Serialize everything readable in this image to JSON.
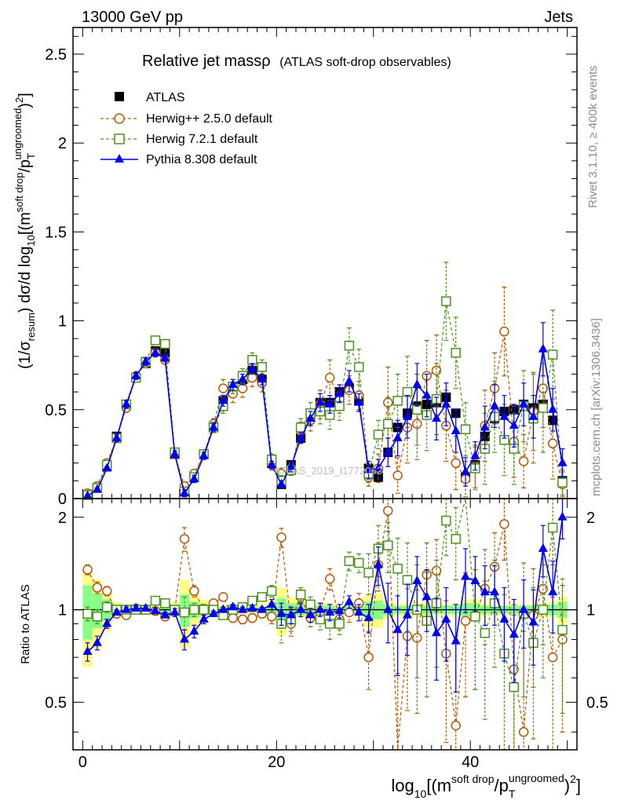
{
  "header": {
    "left": "13000 GeV pp",
    "right": "Jets"
  },
  "side_text": {
    "rivet": "Rivet 3.1.10, ≥ 400k events",
    "mcplots": "mcplots.cern.ch [arXiv:1306.3436]"
  },
  "watermark": "ATLAS_2019_I1772062",
  "chart_data": {
    "type": "scatter",
    "title": "Relative jet massρ",
    "subtitle": "(ATLAS soft-drop observables)",
    "ylabel": "(1/σresum) dσ/d log10[(m soft drop / pT ungroomed)2]",
    "ylabel_parts": {
      "a": "(1/σ",
      "a_sub": "resum",
      "b": ") dσ/d log",
      "b_sub": "10",
      "c": "[(m",
      "c_sup": "soft drop",
      "d": "/p",
      "d_sub": "T",
      "d_sup": "ungroomed",
      "e": ")",
      "e_sup": "2",
      "f": "]"
    },
    "xlabel_parts": {
      "a": "log",
      "a_sub": "10",
      "b": "[(m",
      "b_sup": "soft drop",
      "c": "/p",
      "c_sub": "T",
      "c_sup": "ungroomed",
      "d": ")",
      "d_sup": "2",
      "e": "]"
    },
    "ratio_ylabel": "Ratio to ATLAS",
    "xlim": [
      -1,
      51
    ],
    "ylim": [
      0,
      2.65
    ],
    "ratio_ylim": [
      0.35,
      2.3
    ],
    "x_ticks": [
      "0",
      "20",
      "40"
    ],
    "y_ticks": [
      "0",
      "0.5",
      "1",
      "1.5",
      "2",
      "2.5"
    ],
    "ratio_ticks": [
      "0.5",
      "1",
      "2"
    ],
    "legend": [
      {
        "name": "ATLAS"
      },
      {
        "name": "Herwig++ 2.5.0 default"
      },
      {
        "name": "Herwig 7.2.1 default"
      },
      {
        "name": "Pythia 8.308 default"
      }
    ],
    "colors": {
      "atlas": "#000000",
      "herwigpp": "#b35806",
      "herwig7": "#4d9221",
      "pythia": "#0000ee",
      "band_yellow": "#ffff88",
      "band_green": "#88ff88"
    },
    "x": [
      0.5,
      1.5,
      2.5,
      3.5,
      4.5,
      5.5,
      6.5,
      7.5,
      8.5,
      9.5,
      10.5,
      11.5,
      12.5,
      13.5,
      14.5,
      15.5,
      16.5,
      17.5,
      18.5,
      19.5,
      20.5,
      21.5,
      22.5,
      23.5,
      24.5,
      25.5,
      26.5,
      27.5,
      28.5,
      29.5,
      30.5,
      31.5,
      32.5,
      33.5,
      34.5,
      35.5,
      36.5,
      37.5,
      38.5,
      39.5,
      40.5,
      41.5,
      42.5,
      43.5,
      44.5,
      45.5,
      46.5,
      47.5,
      48.5,
      49.5
    ],
    "series": [
      {
        "name": "ATLAS",
        "values": [
          0.02,
          0.06,
          0.18,
          0.35,
          0.53,
          0.68,
          0.76,
          0.83,
          0.82,
          0.25,
          0.04,
          0.12,
          0.25,
          0.4,
          0.55,
          0.63,
          0.67,
          0.72,
          0.67,
          0.2,
          0.08,
          0.19,
          0.34,
          0.47,
          0.54,
          0.54,
          0.6,
          0.62,
          0.55,
          0.17,
          0.12,
          0.26,
          0.4,
          0.48,
          0.52,
          0.53,
          0.54,
          0.57,
          0.48,
          0.12,
          0.19,
          0.35,
          0.45,
          0.49,
          0.5,
          0.53,
          0.51,
          0.53,
          0.44,
          0.1
        ],
        "ratio": [
          1,
          1,
          1,
          1,
          1,
          1,
          1,
          1,
          1,
          1,
          1,
          1,
          1,
          1,
          1,
          1,
          1,
          1,
          1,
          1,
          1,
          1,
          1,
          1,
          1,
          1,
          1,
          1,
          1,
          1,
          1,
          1,
          1,
          1,
          1,
          1,
          1,
          1,
          1,
          1,
          1,
          1,
          1,
          1,
          1,
          1,
          1,
          1,
          1,
          1
        ],
        "band_yellow": [
          0.35,
          0.25,
          0.15,
          0.06,
          0.04,
          0.03,
          0.03,
          0.03,
          0.04,
          0.06,
          0.25,
          0.12,
          0.08,
          0.05,
          0.04,
          0.03,
          0.03,
          0.03,
          0.04,
          0.08,
          0.18,
          0.1,
          0.06,
          0.05,
          0.04,
          0.05,
          0.04,
          0.04,
          0.05,
          0.12,
          0.13,
          0.07,
          0.05,
          0.05,
          0.05,
          0.05,
          0.04,
          0.04,
          0.05,
          0.08,
          0.08,
          0.05,
          0.04,
          0.04,
          0.04,
          0.04,
          0.04,
          0.05,
          0.06,
          0.1
        ],
        "band_green": [
          0.2,
          0.13,
          0.08,
          0.04,
          0.02,
          0.02,
          0.02,
          0.02,
          0.03,
          0.04,
          0.12,
          0.06,
          0.04,
          0.03,
          0.02,
          0.02,
          0.02,
          0.02,
          0.02,
          0.04,
          0.09,
          0.05,
          0.04,
          0.03,
          0.03,
          0.03,
          0.02,
          0.03,
          0.03,
          0.06,
          0.07,
          0.04,
          0.03,
          0.03,
          0.03,
          0.03,
          0.03,
          0.03,
          0.03,
          0.05,
          0.05,
          0.03,
          0.03,
          0.03,
          0.03,
          0.03,
          0.03,
          0.03,
          0.04,
          0.06
        ]
      },
      {
        "name": "Herwig++ 2.5.0 default",
        "values": [
          0.03,
          0.07,
          0.2,
          0.34,
          0.51,
          0.69,
          0.76,
          0.82,
          0.78,
          0.25,
          0.07,
          0.14,
          0.25,
          0.42,
          0.62,
          0.59,
          0.62,
          0.68,
          0.65,
          0.19,
          0.14,
          0.17,
          0.38,
          0.44,
          0.53,
          0.68,
          0.56,
          0.61,
          0.58,
          0.12,
          0.17,
          0.54,
          0.13,
          0.4,
          0.42,
          0.69,
          0.72,
          0.41,
          0.2,
          0.11,
          0.18,
          0.41,
          0.62,
          0.94,
          0.32,
          0.21,
          0.49,
          0.62,
          0.31,
          0.08
        ],
        "ratio": [
          1.35,
          1.18,
          1.15,
          0.97,
          0.96,
          1.01,
          1.0,
          0.99,
          0.95,
          1.0,
          1.7,
          1.15,
          1.0,
          1.05,
          1.1,
          0.94,
          0.93,
          0.94,
          0.97,
          0.95,
          1.72,
          0.9,
          1.1,
          0.94,
          0.98,
          1.26,
          0.93,
          0.98,
          1.05,
          0.7,
          1.4,
          2.1,
          0.32,
          0.82,
          0.81,
          1.3,
          1.34,
          0.72,
          0.42,
          0.92,
          0.95,
          1.17,
          1.38,
          1.9,
          0.64,
          0.4,
          0.96,
          1.17,
          0.7,
          0.8
        ],
        "err": [
          0.01,
          0.01,
          0.02,
          0.02,
          0.02,
          0.02,
          0.02,
          0.02,
          0.02,
          0.02,
          0.02,
          0.02,
          0.02,
          0.03,
          0.05,
          0.05,
          0.05,
          0.05,
          0.05,
          0.03,
          0.03,
          0.03,
          0.05,
          0.06,
          0.08,
          0.1,
          0.08,
          0.08,
          0.08,
          0.05,
          0.08,
          0.2,
          0.1,
          0.2,
          0.2,
          0.2,
          0.2,
          0.2,
          0.15,
          0.1,
          0.12,
          0.2,
          0.2,
          0.25,
          0.2,
          0.15,
          0.22,
          0.22,
          0.2,
          0.07
        ],
        "ratio_err": [
          0.05,
          0.05,
          0.04,
          0.03,
          0.03,
          0.02,
          0.02,
          0.02,
          0.02,
          0.03,
          0.15,
          0.05,
          0.04,
          0.03,
          0.03,
          0.03,
          0.03,
          0.03,
          0.03,
          0.05,
          0.12,
          0.08,
          0.06,
          0.06,
          0.07,
          0.1,
          0.07,
          0.07,
          0.08,
          0.15,
          0.25,
          0.3,
          0.3,
          0.35,
          0.35,
          0.35,
          0.35,
          0.35,
          0.4,
          0.4,
          0.4,
          0.4,
          0.4,
          0.45,
          0.4,
          0.45,
          0.4,
          0.4,
          0.4,
          0.4
        ]
      },
      {
        "name": "Herwig 7.2.1 default",
        "values": [
          0.02,
          0.06,
          0.19,
          0.34,
          0.53,
          0.68,
          0.77,
          0.89,
          0.87,
          0.26,
          0.04,
          0.12,
          0.25,
          0.4,
          0.52,
          0.63,
          0.69,
          0.78,
          0.74,
          0.22,
          0.1,
          0.16,
          0.4,
          0.48,
          0.49,
          0.47,
          0.52,
          0.86,
          0.74,
          0.14,
          0.36,
          0.42,
          0.55,
          0.6,
          0.5,
          0.47,
          0.56,
          1.11,
          0.82,
          0.39,
          0.17,
          0.28,
          0.46,
          0.33,
          0.28,
          0.52,
          0.45,
          0.51,
          0.81,
          0.09
        ],
        "ratio": [
          0.97,
          0.95,
          1.02,
          1.0,
          1.0,
          1.0,
          1.0,
          1.07,
          1.05,
          1.0,
          0.98,
          1.0,
          1.0,
          1.0,
          0.96,
          1.0,
          1.02,
          1.07,
          1.1,
          1.15,
          0.9,
          0.93,
          1.12,
          1.04,
          0.93,
          0.9,
          0.9,
          1.44,
          1.42,
          1.32,
          1.58,
          1.62,
          1.36,
          1.25,
          1.0,
          0.92,
          1.05,
          1.95,
          1.7,
          3.0,
          0.95,
          0.84,
          1.05,
          0.72,
          0.56,
          0.97,
          0.78,
          1.0,
          1.85,
          0.86
        ],
        "err": [
          0.01,
          0.01,
          0.02,
          0.02,
          0.02,
          0.02,
          0.02,
          0.02,
          0.02,
          0.02,
          0.02,
          0.02,
          0.02,
          0.03,
          0.04,
          0.04,
          0.04,
          0.04,
          0.04,
          0.03,
          0.03,
          0.03,
          0.05,
          0.06,
          0.07,
          0.08,
          0.08,
          0.1,
          0.1,
          0.05,
          0.08,
          0.15,
          0.15,
          0.2,
          0.2,
          0.2,
          0.2,
          0.22,
          0.2,
          0.15,
          0.12,
          0.2,
          0.2,
          0.2,
          0.2,
          0.2,
          0.25,
          0.25,
          0.25,
          0.07
        ],
        "ratio_err": [
          0.05,
          0.05,
          0.04,
          0.03,
          0.03,
          0.02,
          0.02,
          0.02,
          0.02,
          0.03,
          0.12,
          0.05,
          0.04,
          0.03,
          0.03,
          0.03,
          0.03,
          0.03,
          0.03,
          0.05,
          0.12,
          0.08,
          0.06,
          0.06,
          0.07,
          0.1,
          0.07,
          0.1,
          0.1,
          0.2,
          0.3,
          0.3,
          0.35,
          0.4,
          0.4,
          0.4,
          0.4,
          0.45,
          0.45,
          0.5,
          0.4,
          0.4,
          0.4,
          0.4,
          0.4,
          0.45,
          0.4,
          0.4,
          0.45,
          0.4
        ]
      },
      {
        "name": "Pythia 8.308 default",
        "values": [
          0.015,
          0.05,
          0.17,
          0.34,
          0.53,
          0.69,
          0.77,
          0.82,
          0.79,
          0.25,
          0.03,
          0.11,
          0.24,
          0.4,
          0.55,
          0.64,
          0.67,
          0.73,
          0.67,
          0.19,
          0.08,
          0.18,
          0.34,
          0.45,
          0.54,
          0.53,
          0.59,
          0.66,
          0.54,
          0.16,
          0.17,
          0.26,
          0.34,
          0.46,
          0.64,
          0.58,
          0.45,
          0.53,
          0.38,
          0.15,
          0.24,
          0.4,
          0.52,
          0.46,
          0.41,
          0.53,
          0.46,
          0.84,
          0.5,
          0.2
        ],
        "ratio": [
          0.73,
          0.78,
          0.9,
          0.98,
          1.0,
          1.01,
          1.01,
          0.99,
          0.96,
          0.98,
          0.8,
          0.85,
          0.93,
          0.97,
          1.0,
          1.02,
          1.0,
          1.01,
          1.0,
          1.04,
          0.97,
          0.96,
          1.0,
          0.96,
          1.0,
          0.98,
          0.99,
          1.06,
          0.98,
          0.94,
          1.4,
          1.0,
          0.86,
          0.96,
          1.24,
          1.1,
          0.84,
          0.93,
          0.79,
          1.28,
          1.24,
          1.14,
          1.14,
          0.93,
          0.83,
          1.0,
          0.91,
          1.58,
          1.14,
          2.0
        ],
        "err": [
          0.005,
          0.01,
          0.01,
          0.02,
          0.02,
          0.02,
          0.02,
          0.02,
          0.02,
          0.02,
          0.02,
          0.02,
          0.02,
          0.02,
          0.03,
          0.03,
          0.03,
          0.03,
          0.03,
          0.02,
          0.02,
          0.03,
          0.03,
          0.04,
          0.05,
          0.05,
          0.05,
          0.06,
          0.05,
          0.05,
          0.05,
          0.08,
          0.1,
          0.12,
          0.12,
          0.12,
          0.12,
          0.12,
          0.12,
          0.08,
          0.08,
          0.12,
          0.12,
          0.12,
          0.12,
          0.12,
          0.12,
          0.15,
          0.12,
          0.08
        ],
        "ratio_err": [
          0.05,
          0.04,
          0.03,
          0.02,
          0.02,
          0.02,
          0.02,
          0.02,
          0.02,
          0.03,
          0.06,
          0.04,
          0.03,
          0.02,
          0.02,
          0.02,
          0.02,
          0.02,
          0.02,
          0.04,
          0.08,
          0.06,
          0.05,
          0.05,
          0.05,
          0.06,
          0.05,
          0.05,
          0.06,
          0.1,
          0.2,
          0.22,
          0.25,
          0.25,
          0.25,
          0.25,
          0.25,
          0.25,
          0.25,
          0.3,
          0.25,
          0.25,
          0.25,
          0.25,
          0.25,
          0.25,
          0.25,
          0.3,
          0.3,
          0.3
        ]
      }
    ]
  }
}
